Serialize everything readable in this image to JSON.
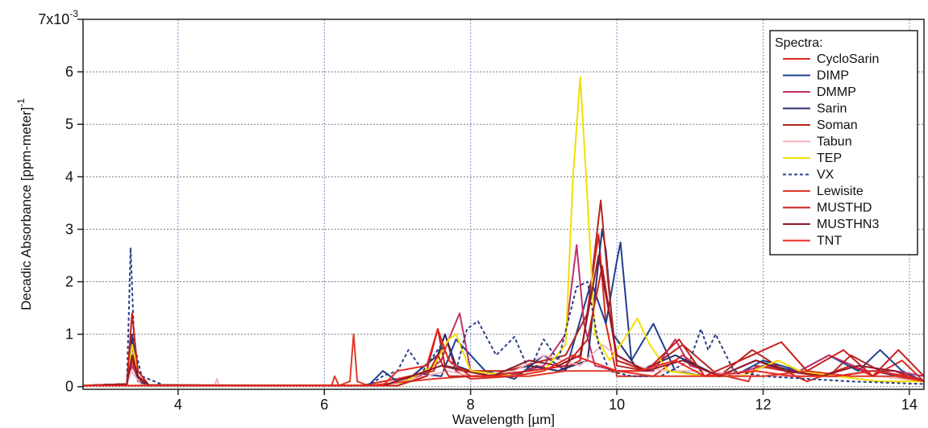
{
  "chart_data": {
    "type": "line",
    "title": "",
    "xlabel": "Wavelength [µm]",
    "ylabel": "Decadic Absorbance [ppm-meter]",
    "ylabel_superscript": "-1",
    "y_top_label_base": "7x10",
    "y_top_label_exp": "-3",
    "xlim": [
      2.7,
      14.2
    ],
    "ylim": [
      -0.05,
      7
    ],
    "x_ticks": [
      4,
      6,
      8,
      10,
      12,
      14
    ],
    "x_tick_labels": [
      "4",
      "6",
      "8",
      "10",
      "12",
      "14"
    ],
    "y_ticks": [
      0,
      1,
      2,
      3,
      4,
      5,
      6,
      7
    ],
    "y_tick_labels": [
      "0",
      "1",
      "2",
      "3",
      "4",
      "5",
      "6",
      "7x10"
    ],
    "grid": true,
    "legend_position": "top-right",
    "legend_title": "Spectra:",
    "series": [
      {
        "name": "CycloSarin",
        "color": "#d62a1e",
        "dash": false,
        "x": [
          2.7,
          3.3,
          3.37,
          3.45,
          3.6,
          6.5,
          7.0,
          7.5,
          7.65,
          7.8,
          8.0,
          8.6,
          8.9,
          9.2,
          9.5,
          9.75,
          9.85,
          10.0,
          10.5,
          10.9,
          11.2,
          11.8,
          11.9,
          12.3,
          12.6,
          13.2,
          13.5,
          13.9,
          14.2
        ],
        "y": [
          0.02,
          0.05,
          0.5,
          0.15,
          0.03,
          0.02,
          0.15,
          0.3,
          1.0,
          0.3,
          0.15,
          0.2,
          0.4,
          0.3,
          0.5,
          2.9,
          1.2,
          0.2,
          0.2,
          0.6,
          0.3,
          0.1,
          0.4,
          0.3,
          0.1,
          0.4,
          0.2,
          0.5,
          0.1
        ]
      },
      {
        "name": "DIMP",
        "color": "#1f3f8f",
        "dash": false,
        "x": [
          2.7,
          3.3,
          3.37,
          3.45,
          3.6,
          6.6,
          6.8,
          7.0,
          7.3,
          7.6,
          7.8,
          8.2,
          8.6,
          9.0,
          9.3,
          9.65,
          9.85,
          10.0,
          10.05,
          10.2,
          10.5,
          10.8,
          11.2,
          11.6,
          12.0,
          12.5,
          12.9,
          13.3,
          13.6,
          13.9,
          14.2
        ],
        "y": [
          0.02,
          0.05,
          1.0,
          0.2,
          0.03,
          0.02,
          0.3,
          0.1,
          0.25,
          0.2,
          0.9,
          0.3,
          0.15,
          0.6,
          0.3,
          2.0,
          1.2,
          2.4,
          2.75,
          0.5,
          1.2,
          0.3,
          0.2,
          0.2,
          0.5,
          0.3,
          0.6,
          0.3,
          0.7,
          0.3,
          0.1
        ]
      },
      {
        "name": "DMMP",
        "color": "#c0306a",
        "dash": false,
        "x": [
          2.7,
          3.3,
          3.37,
          3.5,
          6.8,
          7.0,
          7.3,
          7.6,
          7.7,
          7.85,
          8.0,
          8.5,
          9.0,
          9.3,
          9.45,
          9.55,
          9.7,
          10.0,
          10.5,
          10.8,
          11.0,
          11.5,
          12.0,
          12.5,
          12.9,
          13.4,
          13.8,
          14.2
        ],
        "y": [
          0.02,
          0.05,
          0.4,
          0.03,
          0.02,
          0.1,
          0.2,
          0.5,
          0.9,
          1.4,
          0.3,
          0.2,
          0.4,
          1.0,
          2.7,
          1.2,
          0.4,
          0.3,
          0.3,
          0.9,
          0.4,
          0.2,
          0.4,
          0.3,
          0.6,
          0.3,
          0.3,
          0.2
        ]
      },
      {
        "name": "Sarin",
        "color": "#2b2f6e",
        "dash": false,
        "x": [
          2.7,
          3.3,
          3.36,
          3.45,
          3.6,
          6.8,
          7.2,
          7.55,
          7.65,
          7.8,
          8.2,
          8.8,
          9.2,
          9.6,
          9.8,
          9.85,
          9.95,
          10.3,
          10.8,
          11.4,
          11.9,
          12.4,
          13.0,
          13.5,
          14.2
        ],
        "y": [
          0.02,
          0.05,
          0.9,
          0.1,
          0.03,
          0.02,
          0.2,
          0.6,
          1.0,
          0.4,
          0.2,
          0.4,
          0.3,
          0.5,
          3.0,
          2.6,
          1.0,
          0.3,
          0.6,
          0.2,
          0.5,
          0.3,
          0.2,
          0.3,
          0.1
        ]
      },
      {
        "name": "Soman",
        "color": "#b3261e",
        "dash": false,
        "x": [
          2.7,
          3.3,
          3.37,
          3.45,
          3.6,
          6.8,
          7.4,
          7.55,
          7.65,
          8.0,
          8.5,
          9.0,
          9.3,
          9.6,
          9.78,
          9.88,
          10.0,
          10.4,
          10.9,
          11.4,
          11.85,
          12.3,
          12.9,
          13.2,
          13.6,
          14.2
        ],
        "y": [
          0.02,
          0.05,
          0.8,
          0.2,
          0.03,
          0.02,
          0.3,
          1.1,
          0.4,
          0.3,
          0.3,
          0.5,
          0.6,
          1.4,
          3.55,
          2.0,
          0.4,
          0.3,
          0.8,
          0.2,
          0.7,
          0.3,
          0.2,
          0.6,
          0.3,
          0.1
        ]
      },
      {
        "name": "Tabun",
        "color": "#f2b6be",
        "dash": false,
        "x": [
          2.7,
          3.3,
          3.36,
          3.5,
          4.5,
          4.53,
          4.56,
          5.0,
          6.8,
          7.2,
          7.7,
          8.0,
          8.6,
          9.0,
          9.5,
          9.8,
          10.2,
          10.7,
          11.2,
          11.8,
          12.4,
          13.0,
          13.6,
          14.2
        ],
        "y": [
          0.02,
          0.05,
          0.3,
          0.03,
          0.02,
          0.15,
          0.02,
          0.02,
          0.02,
          0.15,
          0.3,
          0.2,
          0.3,
          0.6,
          0.4,
          0.8,
          0.4,
          0.3,
          0.3,
          0.2,
          0.2,
          0.2,
          0.2,
          0.1
        ]
      },
      {
        "name": "TEP",
        "color": "#f2df00",
        "dash": false,
        "x": [
          2.7,
          3.3,
          3.37,
          3.45,
          3.6,
          7.0,
          7.5,
          7.7,
          7.8,
          8.0,
          8.6,
          9.0,
          9.3,
          9.4,
          9.5,
          9.58,
          9.7,
          9.9,
          10.1,
          10.28,
          10.45,
          10.7,
          11.2,
          11.7,
          12.2,
          12.5,
          13.0,
          13.6,
          14.2
        ],
        "y": [
          0.02,
          0.05,
          0.8,
          0.3,
          0.03,
          0.02,
          0.4,
          0.9,
          1.0,
          0.3,
          0.2,
          0.3,
          0.8,
          4.0,
          5.9,
          4.0,
          1.0,
          0.5,
          0.9,
          1.3,
          0.8,
          0.3,
          0.2,
          0.2,
          0.5,
          0.3,
          0.2,
          0.1,
          0.1
        ]
      },
      {
        "name": "VX",
        "color": "#2a3f88",
        "dash": true,
        "x": [
          2.7,
          3.3,
          3.35,
          3.4,
          3.5,
          3.8,
          6.6,
          6.8,
          7.0,
          7.15,
          7.35,
          7.6,
          7.8,
          7.95,
          8.1,
          8.35,
          8.6,
          8.8,
          9.0,
          9.2,
          9.45,
          9.6,
          9.75,
          9.9,
          10.2,
          10.6,
          11.0,
          11.15,
          11.25,
          11.35,
          11.6,
          12.0,
          12.6,
          13.2,
          14.2
        ],
        "y": [
          0.02,
          0.05,
          2.65,
          0.8,
          0.2,
          0.03,
          0.02,
          0.2,
          0.3,
          0.7,
          0.3,
          0.8,
          0.3,
          1.1,
          1.25,
          0.6,
          0.95,
          0.3,
          0.9,
          0.5,
          1.9,
          2.0,
          0.8,
          0.3,
          0.2,
          0.2,
          0.5,
          1.1,
          0.7,
          1.0,
          0.3,
          0.2,
          0.15,
          0.1,
          0.05
        ]
      },
      {
        "name": "Lewisite",
        "color": "#e03a2c",
        "dash": false,
        "x": [
          2.7,
          6.1,
          6.14,
          6.2,
          6.35,
          6.4,
          6.45,
          6.6,
          7.5,
          8.0,
          8.8,
          9.3,
          10.0,
          10.5,
          11.0,
          11.8,
          12.0,
          12.6,
          13.2,
          13.8,
          14.2
        ],
        "y": [
          0.02,
          0.02,
          0.2,
          0.02,
          0.1,
          1.0,
          0.1,
          0.02,
          0.15,
          0.2,
          0.2,
          0.3,
          0.3,
          0.2,
          0.2,
          0.2,
          0.2,
          0.3,
          0.2,
          0.2,
          0.1
        ]
      },
      {
        "name": "MUSTHD",
        "color": "#c81e1e",
        "dash": false,
        "x": [
          2.7,
          3.3,
          3.37,
          3.45,
          3.6,
          7.0,
          7.4,
          7.55,
          7.7,
          8.2,
          8.8,
          9.3,
          9.6,
          9.8,
          10.0,
          10.4,
          10.85,
          11.2,
          11.85,
          12.25,
          12.6,
          13.1,
          13.5,
          13.85,
          14.2
        ],
        "y": [
          0.02,
          0.05,
          1.4,
          0.3,
          0.03,
          0.02,
          0.2,
          0.6,
          0.2,
          0.2,
          0.3,
          0.4,
          0.9,
          2.3,
          0.5,
          0.3,
          0.9,
          0.2,
          0.6,
          0.85,
          0.3,
          0.7,
          0.2,
          0.7,
          0.2
        ]
      },
      {
        "name": "MUSTHN3",
        "color": "#8f1a2a",
        "dash": false,
        "x": [
          2.7,
          3.3,
          3.37,
          3.45,
          3.6,
          6.8,
          7.2,
          7.6,
          7.9,
          8.3,
          8.8,
          9.2,
          9.5,
          9.75,
          10.0,
          10.4,
          10.9,
          11.4,
          11.9,
          12.3,
          12.8,
          13.3,
          13.8,
          14.2
        ],
        "y": [
          0.02,
          0.05,
          0.6,
          0.2,
          0.03,
          0.02,
          0.2,
          0.4,
          0.3,
          0.2,
          0.5,
          0.4,
          0.6,
          2.5,
          0.6,
          0.3,
          0.5,
          0.2,
          0.5,
          0.3,
          0.2,
          0.4,
          0.3,
          0.1
        ]
      },
      {
        "name": "TNT",
        "color": "#e8281e",
        "dash": false,
        "x": [
          2.7,
          6.8,
          7.0,
          7.4,
          7.55,
          7.7,
          8.0,
          8.6,
          9.0,
          9.4,
          9.8,
          10.0,
          10.3,
          10.8,
          11.2,
          11.9,
          12.4,
          13.0,
          13.5,
          14.0,
          14.2
        ],
        "y": [
          0.02,
          0.02,
          0.3,
          0.4,
          1.1,
          0.5,
          0.2,
          0.2,
          0.3,
          0.6,
          0.4,
          0.3,
          0.3,
          0.5,
          0.2,
          0.3,
          0.2,
          0.2,
          0.3,
          0.2,
          0.1
        ]
      }
    ]
  }
}
